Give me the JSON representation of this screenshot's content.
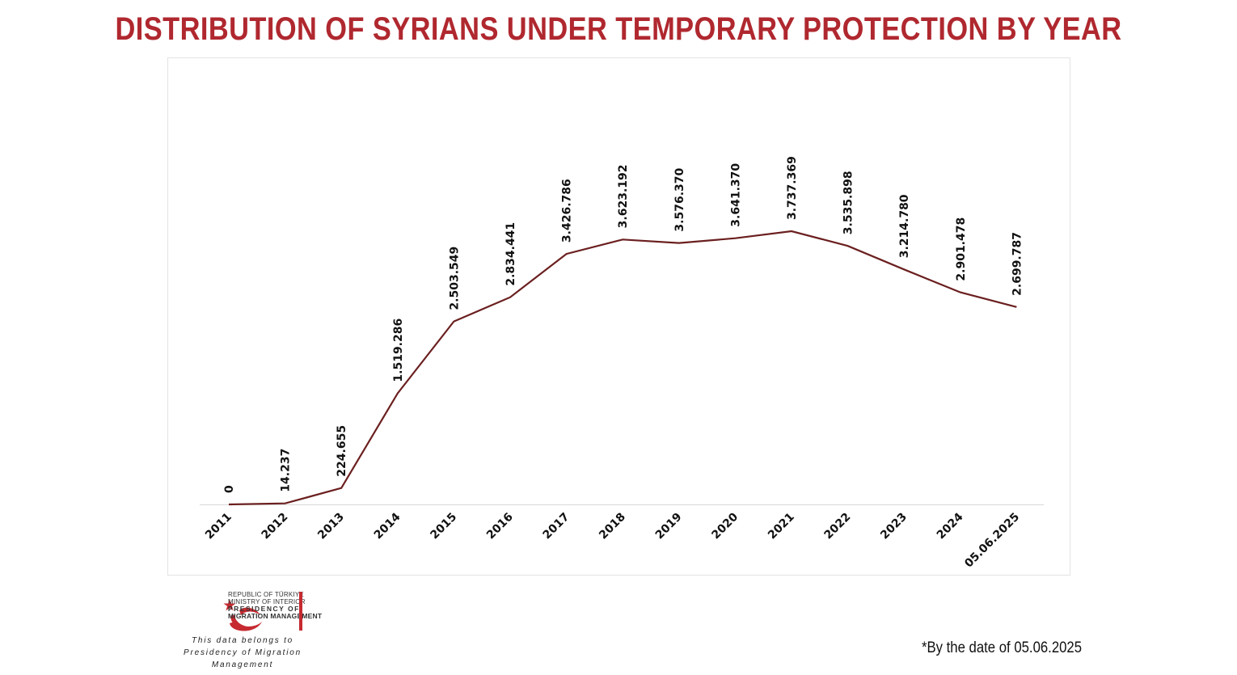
{
  "title": "DISTRIBUTION OF SYRIANS UNDER TEMPORARY PROTECTION BY YEAR",
  "colors": {
    "title": "#b0282f",
    "line": "#6b1f1f",
    "brand_red": "#c62a30"
  },
  "chart_data": {
    "type": "line",
    "title": "DISTRIBUTION OF SYRIANS UNDER TEMPORARY PROTECTION BY YEAR",
    "xlabel": "",
    "ylabel": "",
    "categories": [
      "2011",
      "2012",
      "2013",
      "2014",
      "2015",
      "2016",
      "2017",
      "2018",
      "2019",
      "2020",
      "2021",
      "2022",
      "2023",
      "2024",
      "05.06.2025"
    ],
    "values": [
      0,
      14237,
      224655,
      1519286,
      2503549,
      2834441,
      3426786,
      3623192,
      3576370,
      3641370,
      3737369,
      3535898,
      3214780,
      2901478,
      2699787
    ],
    "value_labels": [
      "0",
      "14.237",
      "224.655",
      "1.519.286",
      "2.503.549",
      "2.834.441",
      "3.426.786",
      "3.623.192",
      "3.576.370",
      "3.641.370",
      "3.737.369",
      "3.535.898",
      "3.214.780",
      "2.901.478",
      "2.699.787"
    ],
    "ylim": [
      0,
      6000000
    ],
    "grid": false,
    "legend": "none",
    "axis_line": "x-only"
  },
  "logo": {
    "line1": "REPUBLIC OF TÜRKIYE",
    "line2": "MINISTRY OF INTERIOR",
    "line3": "PRESIDENCY OF",
    "line4": "MIGRATION MANAGEMENT",
    "icon": "crescent-star-bird-icon"
  },
  "credit": {
    "line1": "This data belongs to",
    "line2": "Presidency of Migration Management"
  },
  "footnote": "*By the date of  05.06.2025"
}
